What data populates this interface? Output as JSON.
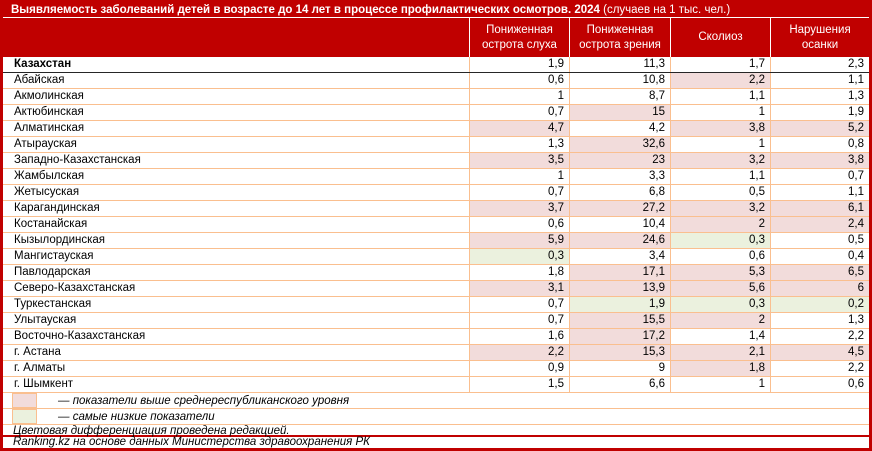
{
  "title": {
    "main": "Выявляемость заболеваний детей в возрасте до 14 лет в процессе профилактических осмотров. 2024",
    "suffix": " (случаев на 1 тыс. чел.)"
  },
  "table": {
    "columns": [
      "Пониженная острота слуха",
      "Пониженная острота зрения",
      "Сколиоз",
      "Нарушения осанки"
    ],
    "rows": [
      {
        "region": "Казахстан",
        "bold": true,
        "values": [
          "1,9",
          "11,3",
          "1,7",
          "2,3"
        ],
        "marks": [
          "",
          "",
          "",
          ""
        ]
      },
      {
        "region": "Абайская",
        "bold": false,
        "values": [
          "0,6",
          "10,8",
          "2,2",
          "1,1"
        ],
        "marks": [
          "",
          "",
          "high",
          ""
        ]
      },
      {
        "region": "Акмолинская",
        "bold": false,
        "values": [
          "1",
          "8,7",
          "1,1",
          "1,3"
        ],
        "marks": [
          "",
          "",
          "",
          ""
        ]
      },
      {
        "region": "Актюбинская",
        "bold": false,
        "values": [
          "0,7",
          "15",
          "1",
          "1,9"
        ],
        "marks": [
          "",
          "high",
          "",
          ""
        ]
      },
      {
        "region": "Алматинская",
        "bold": false,
        "values": [
          "4,7",
          "4,2",
          "3,8",
          "5,2"
        ],
        "marks": [
          "high",
          "",
          "high",
          "high"
        ]
      },
      {
        "region": "Атырауская",
        "bold": false,
        "values": [
          "1,3",
          "32,6",
          "1",
          "0,8"
        ],
        "marks": [
          "",
          "high",
          "",
          ""
        ]
      },
      {
        "region": "Западно-Казахстанская",
        "bold": false,
        "values": [
          "3,5",
          "23",
          "3,2",
          "3,8"
        ],
        "marks": [
          "high",
          "high",
          "high",
          "high"
        ]
      },
      {
        "region": "Жамбылская",
        "bold": false,
        "values": [
          "1",
          "3,3",
          "1,1",
          "0,7"
        ],
        "marks": [
          "",
          "",
          "",
          ""
        ]
      },
      {
        "region": "Жетысуская",
        "bold": false,
        "values": [
          "0,7",
          "6,8",
          "0,5",
          "1,1"
        ],
        "marks": [
          "",
          "",
          "",
          ""
        ]
      },
      {
        "region": "Карагандинская",
        "bold": false,
        "values": [
          "3,7",
          "27,2",
          "3,2",
          "6,1"
        ],
        "marks": [
          "high",
          "high",
          "high",
          "high"
        ]
      },
      {
        "region": "Костанайская",
        "bold": false,
        "values": [
          "0,6",
          "10,4",
          "2",
          "2,4"
        ],
        "marks": [
          "",
          "",
          "high",
          "high"
        ]
      },
      {
        "region": "Кызылординская",
        "bold": false,
        "values": [
          "5,9",
          "24,6",
          "0,3",
          "0,5"
        ],
        "marks": [
          "high",
          "high",
          "low",
          ""
        ]
      },
      {
        "region": "Мангистауская",
        "bold": false,
        "values": [
          "0,3",
          "3,4",
          "0,6",
          "0,4"
        ],
        "marks": [
          "low",
          "",
          "",
          ""
        ]
      },
      {
        "region": "Павлодарская",
        "bold": false,
        "values": [
          "1,8",
          "17,1",
          "5,3",
          "6,5"
        ],
        "marks": [
          "",
          "high",
          "high",
          "high"
        ]
      },
      {
        "region": "Северо-Казахстанская",
        "bold": false,
        "values": [
          "3,1",
          "13,9",
          "5,6",
          "6"
        ],
        "marks": [
          "high",
          "high",
          "high",
          "high"
        ]
      },
      {
        "region": "Туркестанская",
        "bold": false,
        "values": [
          "0,7",
          "1,9",
          "0,3",
          "0,2"
        ],
        "marks": [
          "",
          "low",
          "low",
          "low"
        ]
      },
      {
        "region": "Улытауская",
        "bold": false,
        "values": [
          "0,7",
          "15,5",
          "2",
          "1,3"
        ],
        "marks": [
          "",
          "high",
          "high",
          ""
        ]
      },
      {
        "region": "Восточно-Казахстанская",
        "bold": false,
        "values": [
          "1,6",
          "17,2",
          "1,4",
          "2,2"
        ],
        "marks": [
          "",
          "high",
          "",
          ""
        ]
      },
      {
        "region": "г. Астана",
        "bold": false,
        "values": [
          "2,2",
          "15,3",
          "2,1",
          "4,5"
        ],
        "marks": [
          "high",
          "high",
          "high",
          "high"
        ]
      },
      {
        "region": "г. Алматы",
        "bold": false,
        "values": [
          "0,9",
          "9",
          "1,8",
          "2,2"
        ],
        "marks": [
          "",
          "",
          "high",
          ""
        ]
      },
      {
        "region": "г. Шымкент",
        "bold": false,
        "values": [
          "1,5",
          "6,6",
          "1",
          "0,6"
        ],
        "marks": [
          "",
          "",
          "",
          ""
        ]
      }
    ]
  },
  "legend": {
    "items": [
      {
        "type": "high",
        "label": "— показатели выше среднереспубликанского уровня"
      },
      {
        "type": "low",
        "label": "— самые низкие показатели"
      }
    ]
  },
  "notes": [
    "Цветовая дифференциация проведена редакцией."
  ],
  "source": "Ranking.kz на основе данных Министерства здравоохранения РК",
  "colors": {
    "accent": "#C00000",
    "grid": "#FABF8F",
    "above_average_fill": "#F2DCDB",
    "lowest_fill": "#EBF1DE",
    "header_text": "#FFFFFF",
    "body_text": "#000000"
  },
  "chart_data": {
    "type": "table",
    "title": "Выявляемость заболеваний детей в возрасте до 14 лет в процессе профилактических осмотров. 2024 (случаев на 1 тыс. чел.)",
    "categories": [
      "Казахстан",
      "Абайская",
      "Акмолинская",
      "Актюбинская",
      "Алматинская",
      "Атырауская",
      "Западно-Казахстанская",
      "Жамбылская",
      "Жетысуская",
      "Карагандинская",
      "Костанайская",
      "Кызылординская",
      "Мангистауская",
      "Павлодарская",
      "Северо-Казахстанская",
      "Туркестанская",
      "Улытауская",
      "Восточно-Казахстанская",
      "г. Астана",
      "г. Алматы",
      "г. Шымкент"
    ],
    "series": [
      {
        "name": "Пониженная острота слуха",
        "values": [
          1.9,
          0.6,
          1,
          0.7,
          4.7,
          1.3,
          3.5,
          1,
          0.7,
          3.7,
          0.6,
          5.9,
          0.3,
          1.8,
          3.1,
          0.7,
          0.7,
          1.6,
          2.2,
          0.9,
          1.5
        ]
      },
      {
        "name": "Пониженная острота зрения",
        "values": [
          11.3,
          10.8,
          8.7,
          15,
          4.2,
          32.6,
          23,
          3.3,
          6.8,
          27.2,
          10.4,
          24.6,
          3.4,
          17.1,
          13.9,
          1.9,
          15.5,
          17.2,
          15.3,
          9,
          6.6
        ]
      },
      {
        "name": "Сколиоз",
        "values": [
          1.7,
          2.2,
          1.1,
          1,
          3.8,
          1,
          3.2,
          1.1,
          0.5,
          3.2,
          2,
          0.3,
          0.6,
          5.3,
          5.6,
          0.3,
          2,
          1.4,
          2.1,
          1.8,
          1
        ]
      },
      {
        "name": "Нарушения осанки",
        "values": [
          2.3,
          1.1,
          1.3,
          1.9,
          5.2,
          0.8,
          3.8,
          0.7,
          1.1,
          6.1,
          2.4,
          0.5,
          0.4,
          6.5,
          6,
          0.2,
          1.3,
          2.2,
          4.5,
          2.2,
          0.6
        ]
      }
    ],
    "units": "случаев на 1 тыс. чел."
  }
}
